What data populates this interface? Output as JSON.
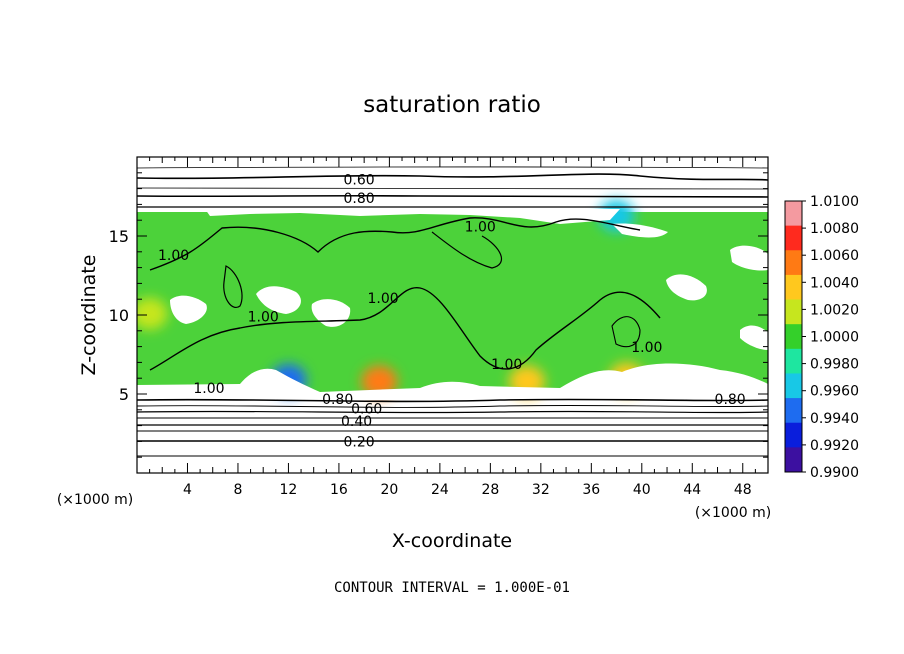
{
  "chart_data": {
    "type": "heatmap",
    "title": "saturation ratio",
    "xlabel": "X-coordinate",
    "ylabel": "Z-coordinate",
    "x_unit": "(×1000 m)",
    "y_unit": "(×1000 m)",
    "xlim": [
      0,
      50
    ],
    "ylim": [
      0,
      20
    ],
    "x_ticks": [
      4,
      8,
      12,
      16,
      20,
      24,
      28,
      32,
      36,
      40,
      44,
      48
    ],
    "y_ticks": [
      5,
      10,
      15
    ],
    "footer": "CONTOUR INTERVAL = 1.000E-01",
    "colorbar": {
      "levels": [
        "1.0100",
        "1.0080",
        "1.0060",
        "1.0040",
        "1.0020",
        "1.0000",
        "0.9980",
        "0.9960",
        "0.9940",
        "0.9920",
        "0.9900"
      ],
      "colors": [
        "#f49aa0",
        "#ff2a1e",
        "#ff7a14",
        "#ffc81e",
        "#c6e61e",
        "#34d02a",
        "#1ee6a0",
        "#18c8e6",
        "#1e6cf0",
        "#0a1edc",
        "#3c10a0"
      ]
    },
    "contour_labels": [
      {
        "text": "0.60",
        "x": 17.6,
        "z": 18.4
      },
      {
        "text": "0.80",
        "x": 17.6,
        "z": 17.2
      },
      {
        "text": "1.00",
        "x": 2.9,
        "z": 13.6
      },
      {
        "text": "1.00",
        "x": 10.0,
        "z": 9.7
      },
      {
        "text": "1.00",
        "x": 19.5,
        "z": 10.9
      },
      {
        "text": "1.00",
        "x": 27.2,
        "z": 15.4
      },
      {
        "text": "1.00",
        "x": 29.3,
        "z": 6.7
      },
      {
        "text": "1.00",
        "x": 40.4,
        "z": 7.8
      },
      {
        "text": "1.00",
        "x": 5.7,
        "z": 5.2
      },
      {
        "text": "0.80",
        "x": 15.9,
        "z": 4.5
      },
      {
        "text": "0.80",
        "x": 47.0,
        "z": 4.5
      },
      {
        "text": "0.60",
        "x": 18.2,
        "z": 3.9
      },
      {
        "text": "0.40",
        "x": 17.4,
        "z": 3.1
      },
      {
        "text": "0.20",
        "x": 17.6,
        "z": 1.8
      }
    ],
    "hotspots": [
      {
        "x": 19.2,
        "z": 5.4,
        "value": 1.006
      },
      {
        "x": 30.9,
        "z": 5.4,
        "value": 1.005
      },
      {
        "x": 38.8,
        "z": 5.6,
        "value": 1.004
      },
      {
        "x": 1.0,
        "z": 9.7,
        "value": 1.003
      },
      {
        "x": 12.0,
        "z": 5.5,
        "value": 0.994
      },
      {
        "x": 38.0,
        "z": 15.9,
        "value": 0.996
      }
    ]
  }
}
